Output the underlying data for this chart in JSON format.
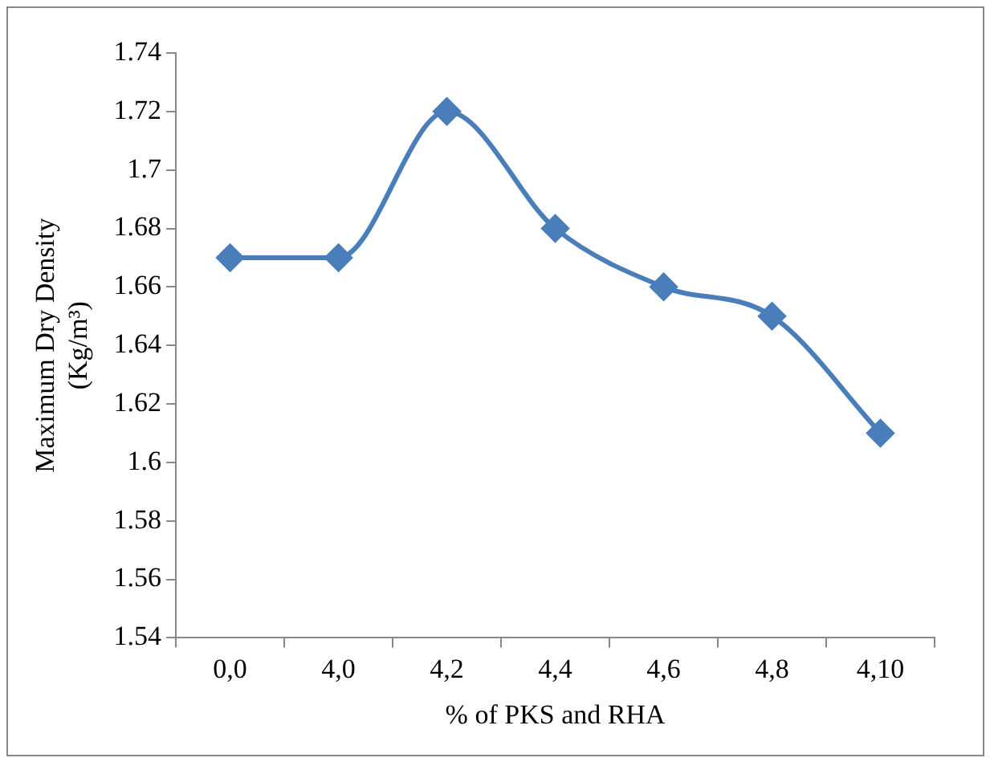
{
  "chart_data": {
    "type": "line",
    "xlabel": "% of PKS and RHA",
    "ylabel": "Maximum Dry Density (Kg/m³)",
    "categories": [
      "0,0",
      "4,0",
      "4,2",
      "4,4",
      "4,6",
      "4,8",
      "4,10"
    ],
    "values": [
      1.67,
      1.67,
      1.72,
      1.68,
      1.66,
      1.65,
      1.61
    ],
    "color": "#4a7ebb",
    "marker": "diamond",
    "ylim": [
      1.54,
      1.74
    ],
    "yticks": [
      1.54,
      1.56,
      1.58,
      1.6,
      1.62,
      1.64,
      1.66,
      1.68,
      1.7,
      1.72,
      1.74
    ]
  }
}
